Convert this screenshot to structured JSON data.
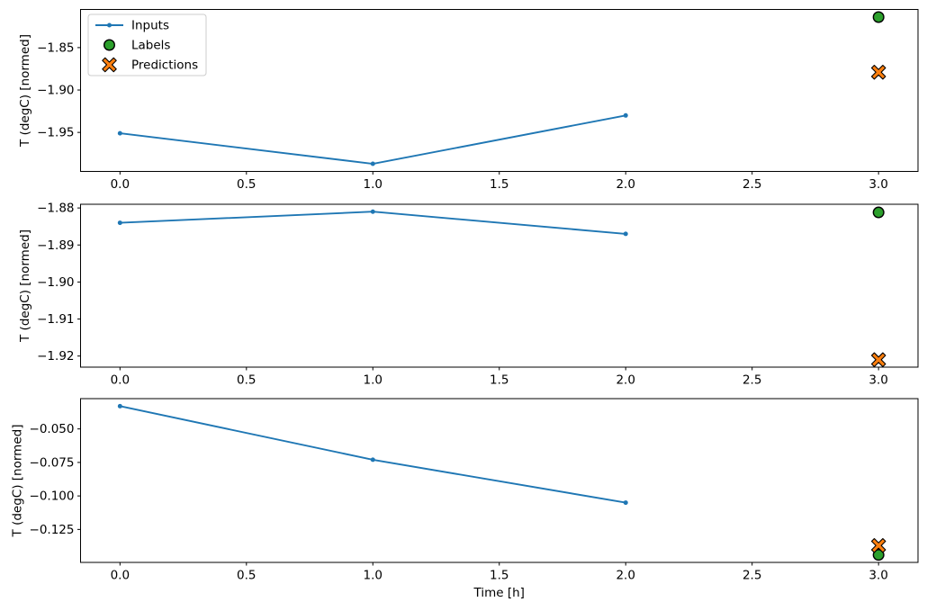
{
  "figure": {
    "background": "#ffffff",
    "text_color": "#000000",
    "spine_color": "#000000"
  },
  "chart_data": {
    "type": "line",
    "title": "",
    "xlabel": "Time [h]",
    "ylabel": "T (degC) [normed]",
    "xlim": [
      -0.156,
      3.156
    ],
    "xticks": [
      0.0,
      0.5,
      1.0,
      1.5,
      2.0,
      2.5,
      3.0
    ],
    "xtick_labels": [
      "0.0",
      "0.5",
      "1.0",
      "1.5",
      "2.0",
      "2.5",
      "3.0"
    ],
    "grid": false,
    "legend": {
      "position": "upper left",
      "items": [
        {
          "label": "Inputs",
          "marker": "line-dot",
          "color": "#1f77b4"
        },
        {
          "label": "Labels",
          "marker": "circle",
          "color": "#2ca02c"
        },
        {
          "label": "Predictions",
          "marker": "thick-x",
          "color": "#ff7f0e"
        }
      ]
    },
    "subplots": [
      {
        "ylim": [
          -1.996,
          -1.805
        ],
        "yticks": [
          -1.85,
          -1.9,
          -1.95
        ],
        "ytick_labels": [
          "−1.85",
          "−1.90",
          "−1.95"
        ],
        "series": {
          "inputs": {
            "x": [
              0,
              1,
              2
            ],
            "y": [
              -1.951,
              -1.987,
              -1.93
            ]
          },
          "labels": {
            "x": [
              3
            ],
            "y": [
              -1.814
            ]
          },
          "predictions": {
            "x": [
              3
            ],
            "y": [
              -1.879
            ]
          }
        }
      },
      {
        "ylim": [
          -1.923,
          -1.879
        ],
        "yticks": [
          -1.88,
          -1.89,
          -1.9,
          -1.91,
          -1.92
        ],
        "ytick_labels": [
          "−1.88",
          "−1.89",
          "−1.90",
          "−1.91",
          "−1.92"
        ],
        "series": {
          "inputs": {
            "x": [
              0,
              1,
              2
            ],
            "y": [
              -1.884,
              -1.881,
              -1.887
            ]
          },
          "labels": {
            "x": [
              3
            ],
            "y": [
              -1.8812
            ]
          },
          "predictions": {
            "x": [
              3
            ],
            "y": [
              -1.921
            ]
          }
        }
      },
      {
        "ylim": [
          -0.1496,
          -0.0274
        ],
        "yticks": [
          -0.05,
          -0.075,
          -0.1,
          -0.125
        ],
        "ytick_labels": [
          "−0.050",
          "−0.075",
          "−0.100",
          "−0.125"
        ],
        "series": {
          "inputs": {
            "x": [
              0,
              1,
              2
            ],
            "y": [
              -0.033,
              -0.073,
              -0.105
            ]
          },
          "labels": {
            "x": [
              3
            ],
            "y": [
              -0.144
            ]
          },
          "predictions": {
            "x": [
              3
            ],
            "y": [
              -0.137
            ]
          }
        }
      }
    ]
  }
}
